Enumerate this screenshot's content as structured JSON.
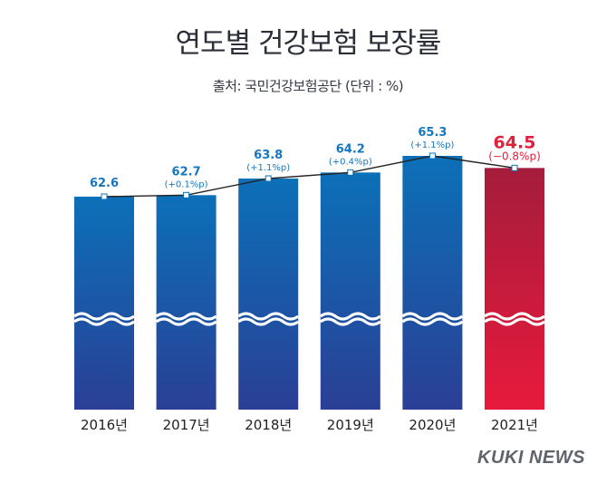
{
  "title": "연도별 건강보험 보장률",
  "subtitle": "출처: 국민건강보험공단 (단위 : %)",
  "logo": "KUKI NEWS",
  "colors": {
    "bar_top": "#0c70b8",
    "bar_bottom": "#2a3f95",
    "highlight_top": "#a51c3c",
    "highlight_bottom": "#e81a3c",
    "label_blue": "#1677c0",
    "label_red": "#e0213d",
    "line": "#222222"
  },
  "chart_data": {
    "type": "bar",
    "title": "연도별 건강보험 보장률",
    "subtitle": "출처: 국민건강보험공단 (단위 : %)",
    "categories": [
      "2016년",
      "2017년",
      "2018년",
      "2019년",
      "2020년",
      "2021년"
    ],
    "values": [
      62.6,
      62.7,
      63.8,
      64.2,
      65.3,
      64.5
    ],
    "value_labels": [
      "62.6",
      "62.7",
      "63.8",
      "64.2",
      "65.3",
      "64.5"
    ],
    "change_labels": [
      "",
      "(+0.1%p)",
      "(+1.1%p)",
      "(+0.4%p)",
      "(+1.1%p)",
      "(−0.8%p)"
    ],
    "highlight_index": 5,
    "axis_break": true,
    "ylim": [
      62.6,
      65.3
    ],
    "overlay": "line",
    "grid": false
  }
}
